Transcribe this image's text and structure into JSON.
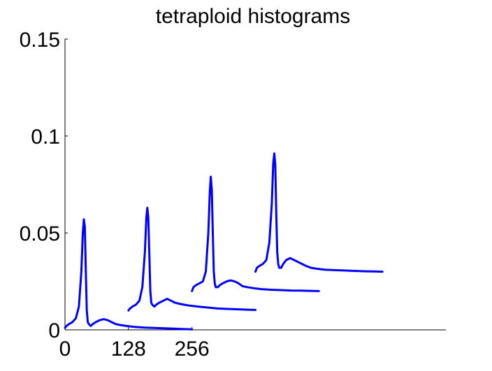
{
  "chart_data": {
    "type": "line",
    "title": "tetraploid histograms",
    "xlabel": "",
    "ylabel": "",
    "xlim": [
      0,
      768
    ],
    "ylim": [
      0,
      0.15
    ],
    "x_ticks": [
      {
        "value": 0,
        "label": "0"
      },
      {
        "value": 128,
        "label": "128"
      },
      {
        "value": 256,
        "label": "256"
      }
    ],
    "y_ticks": [
      {
        "value": 0,
        "label": "0"
      },
      {
        "value": 0.05,
        "label": "0.05"
      },
      {
        "value": 0.1,
        "label": "0.1"
      },
      {
        "value": 0.15,
        "label": "0.15"
      }
    ],
    "grid": false,
    "legend": "none",
    "color": "#0000ff",
    "series": [
      {
        "x": [
          0,
          3,
          8,
          15,
          22,
          28,
          33,
          36,
          38,
          40,
          42,
          44,
          46,
          48,
          52,
          56,
          62,
          70,
          78,
          86,
          94,
          102,
          112,
          124,
          140,
          160,
          180,
          200,
          220,
          240,
          256
        ],
        "y": [
          0.001,
          0.002,
          0.003,
          0.004,
          0.006,
          0.012,
          0.03,
          0.05,
          0.057,
          0.053,
          0.03,
          0.01,
          0.004,
          0.003,
          0.002,
          0.003,
          0.004,
          0.005,
          0.0055,
          0.005,
          0.004,
          0.003,
          0.0025,
          0.002,
          0.0015,
          0.0012,
          0.001,
          0.0008,
          0.0006,
          0.0004,
          0.0003
        ]
      },
      {
        "x": [
          128,
          131,
          136,
          143,
          150,
          156,
          161,
          164,
          166,
          168,
          170,
          172,
          174,
          176,
          180,
          184,
          190,
          198,
          206,
          214,
          222,
          230,
          240,
          252,
          268,
          288,
          308,
          328,
          348,
          368,
          384
        ],
        "y": [
          0.01,
          0.011,
          0.012,
          0.013,
          0.015,
          0.022,
          0.04,
          0.058,
          0.063,
          0.058,
          0.04,
          0.02,
          0.014,
          0.013,
          0.012,
          0.013,
          0.014,
          0.015,
          0.016,
          0.015,
          0.014,
          0.0135,
          0.013,
          0.0125,
          0.012,
          0.0115,
          0.011,
          0.0108,
          0.0106,
          0.0104,
          0.0103
        ]
      },
      {
        "x": [
          256,
          259,
          264,
          271,
          278,
          284,
          289,
          292,
          294,
          296,
          298,
          300,
          302,
          304,
          308,
          312,
          318,
          326,
          334,
          342,
          350,
          358,
          368,
          380,
          396,
          416,
          436,
          456,
          476,
          496,
          512
        ],
        "y": [
          0.02,
          0.022,
          0.023,
          0.024,
          0.025,
          0.03,
          0.05,
          0.071,
          0.079,
          0.072,
          0.05,
          0.03,
          0.024,
          0.022,
          0.022,
          0.023,
          0.024,
          0.025,
          0.0255,
          0.025,
          0.024,
          0.0225,
          0.022,
          0.0215,
          0.021,
          0.0207,
          0.0205,
          0.0203,
          0.0202,
          0.0201,
          0.02
        ]
      },
      {
        "x": [
          384,
          387,
          392,
          399,
          406,
          412,
          417,
          420,
          422,
          424,
          426,
          428,
          430,
          432,
          436,
          440,
          446,
          454,
          462,
          470,
          478,
          486,
          496,
          508,
          524,
          544,
          564,
          584,
          604,
          624,
          640
        ],
        "y": [
          0.03,
          0.032,
          0.033,
          0.034,
          0.036,
          0.045,
          0.065,
          0.086,
          0.091,
          0.085,
          0.06,
          0.04,
          0.034,
          0.032,
          0.032,
          0.034,
          0.036,
          0.037,
          0.036,
          0.035,
          0.034,
          0.033,
          0.032,
          0.0315,
          0.031,
          0.0308,
          0.0306,
          0.0304,
          0.0302,
          0.0301,
          0.03
        ]
      }
    ]
  }
}
